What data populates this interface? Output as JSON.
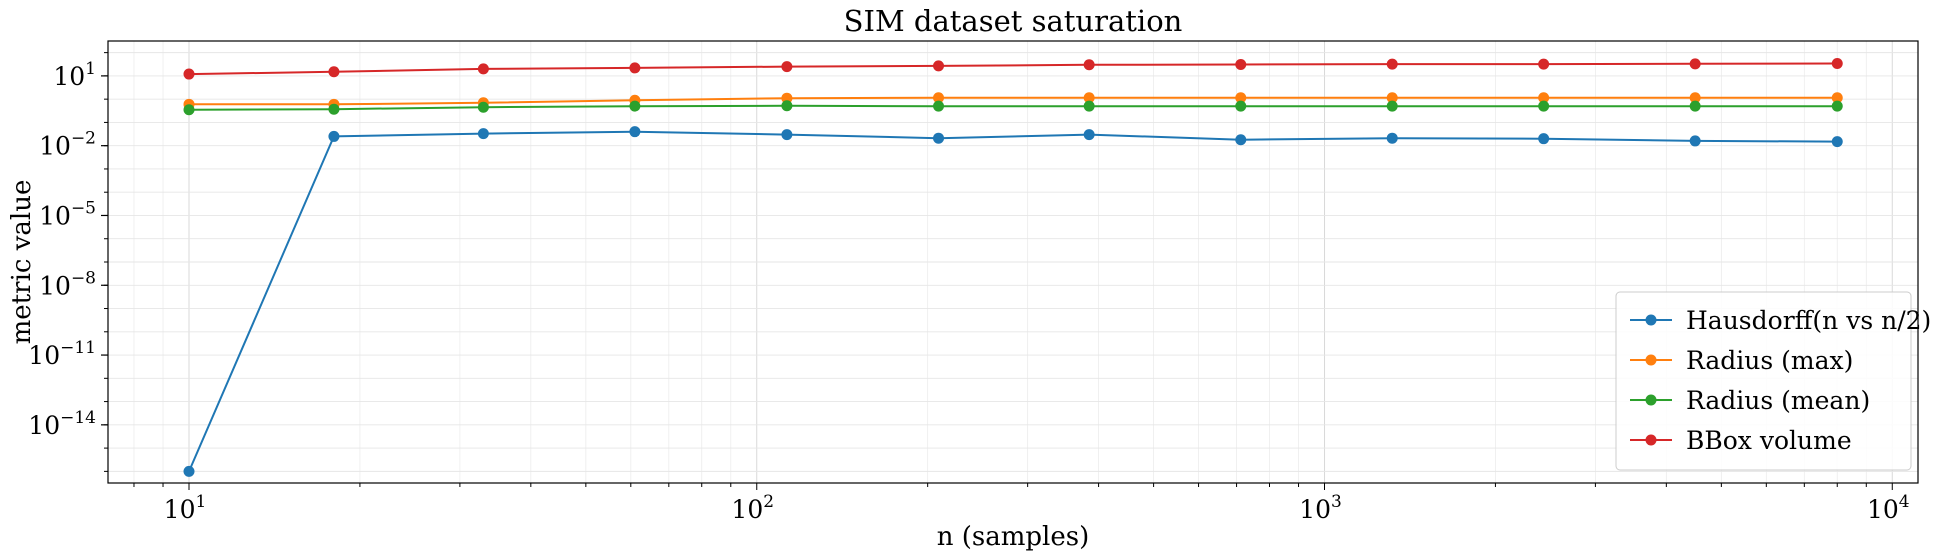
{
  "chart_data": {
    "type": "line",
    "title": "SIM dataset saturation",
    "xlabel": "n (samples)",
    "ylabel": "metric value",
    "xscale": "log",
    "yscale": "log",
    "xlim": [
      7.2,
      11100
    ],
    "ylim_log10": [
      -16.5,
      2.5
    ],
    "grid": true,
    "legend_position": "lower-right",
    "x": [
      10,
      18,
      33,
      61,
      113,
      209,
      385,
      712,
      1316,
      2432,
      4496,
      8000
    ],
    "x_ticks": [
      {
        "value": 10,
        "base": "10",
        "exp": "1"
      },
      {
        "value": 100,
        "base": "10",
        "exp": "2"
      },
      {
        "value": 1000,
        "base": "10",
        "exp": "3"
      },
      {
        "value": 10000,
        "base": "10",
        "exp": "4"
      }
    ],
    "y_ticks": [
      {
        "value": 10,
        "base": "10",
        "exp": "1"
      },
      {
        "value": 0.01,
        "base": "10",
        "exp": "−2"
      },
      {
        "value": 1e-05,
        "base": "10",
        "exp": "−5"
      },
      {
        "value": 1e-08,
        "base": "10",
        "exp": "−8"
      },
      {
        "value": 1e-11,
        "base": "10",
        "exp": "−11"
      },
      {
        "value": 1e-14,
        "base": "10",
        "exp": "−14"
      }
    ],
    "series": [
      {
        "name": "Hausdorff(n vs n/2)",
        "color": "#1f77b4",
        "values": [
          1e-16,
          0.025,
          0.033,
          0.04,
          0.03,
          0.021,
          0.03,
          0.018,
          0.021,
          0.02,
          0.016,
          0.015
        ]
      },
      {
        "name": "Radius (max)",
        "color": "#ff7f0e",
        "values": [
          0.6,
          0.6,
          0.7,
          0.9,
          1.1,
          1.15,
          1.15,
          1.15,
          1.15,
          1.15,
          1.15,
          1.15
        ]
      },
      {
        "name": "Radius (mean)",
        "color": "#2ca02c",
        "values": [
          0.35,
          0.37,
          0.45,
          0.5,
          0.52,
          0.5,
          0.5,
          0.5,
          0.5,
          0.5,
          0.5,
          0.5
        ]
      },
      {
        "name": "BBox volume",
        "color": "#d62728",
        "values": [
          12,
          15,
          20,
          22,
          25,
          27,
          30,
          31,
          32,
          32,
          33,
          34
        ]
      }
    ]
  }
}
